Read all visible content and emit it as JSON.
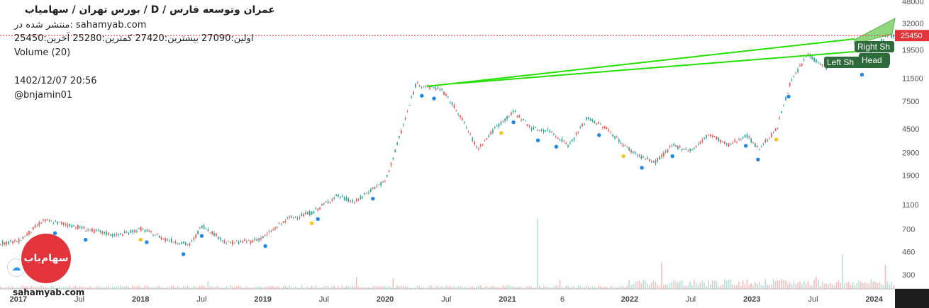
{
  "header": {
    "title": "عمران وتوسعه فارس  /  D  /  بورس تهران / سهامیاب",
    "published": "منتشر شده در: sahamyab.com",
    "ohlc": "اولین:27090  بیشترین:27420  کمترین:25280  آخرین:25450",
    "volume": "Volume (20)",
    "datetime": "1402/12/07 20:56",
    "author": "@bnjamin01"
  },
  "logo": {
    "text": "سهام‌یاب",
    "caption": "sahamyab.com"
  },
  "chart_data": {
    "type": "candlestick",
    "y_scale": "log",
    "ylim": [
      230,
      48000
    ],
    "price_axis_ticks": [
      48000,
      32000,
      19500,
      11500,
      7500,
      4500,
      2900,
      1900,
      1100,
      700,
      460,
      300
    ],
    "time_axis_labels": [
      "2017",
      "Jul",
      "2018",
      "Jul",
      "2019",
      "Jul",
      "2020",
      "Jul",
      "2021",
      "6",
      "2022",
      "Jul",
      "2023",
      "Jul",
      "2024"
    ],
    "last_price": 25450,
    "last_price_color": "#e3343c",
    "up_color": "#26a69a",
    "down_color": "#ef5350",
    "pattern_line_color": "#22e000",
    "annotations": [
      "Left Sh",
      "Head",
      "Right Sh"
    ],
    "series": [
      {
        "name": "Price",
        "x": [
          2016.85,
          2017.0,
          2017.2,
          2017.4,
          2017.6,
          2017.8,
          2018.0,
          2018.2,
          2018.4,
          2018.5,
          2018.7,
          2018.9,
          2019.0,
          2019.2,
          2019.4,
          2019.6,
          2019.75,
          2019.9,
          2020.0,
          2020.1,
          2020.25,
          2020.35,
          2020.45,
          2020.6,
          2020.75,
          2020.9,
          2021.05,
          2021.2,
          2021.35,
          2021.5,
          2021.65,
          2021.8,
          2021.95,
          2022.05,
          2022.2,
          2022.35,
          2022.5,
          2022.65,
          2022.8,
          2022.95,
          2023.05,
          2023.2,
          2023.3,
          2023.45,
          2023.6,
          2023.75,
          2023.9,
          2024.0,
          2024.1,
          2024.15
        ],
        "values": [
          540,
          560,
          820,
          760,
          680,
          620,
          700,
          580,
          520,
          750,
          540,
          560,
          600,
          850,
          950,
          1300,
          1150,
          1500,
          1700,
          3500,
          10500,
          9800,
          9500,
          6000,
          3100,
          4600,
          6200,
          4500,
          4300,
          3300,
          5500,
          4600,
          3300,
          2800,
          2400,
          3300,
          3000,
          4100,
          3300,
          4000,
          3100,
          4500,
          10000,
          18000,
          14000,
          16500,
          15000,
          21000,
          26000,
          25450
        ]
      }
    ]
  }
}
